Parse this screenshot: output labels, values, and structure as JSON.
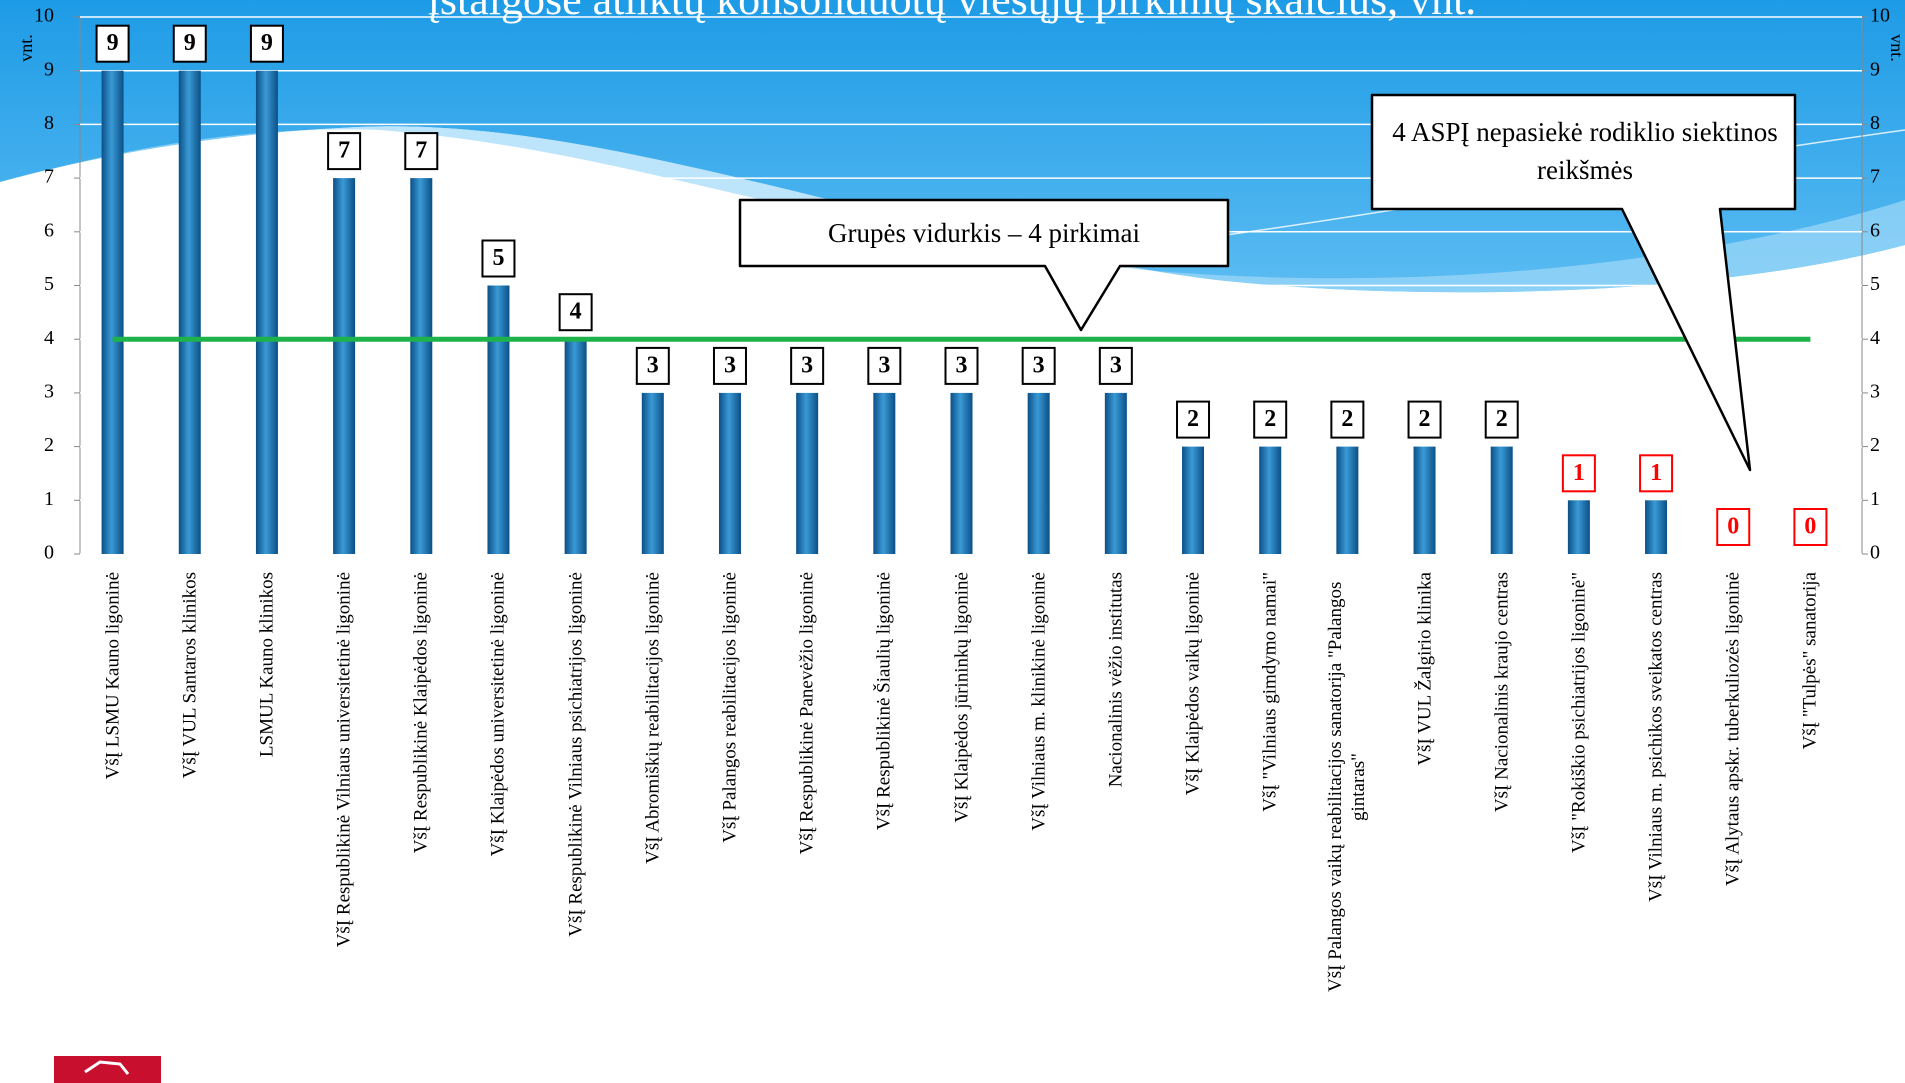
{
  "chart_data": {
    "type": "bar",
    "title": "įstaigose atliktų konsoliduotų viešųjų pirkimų skaičius, vnt.",
    "y_label": "vnt.",
    "y2_label": "vnt.",
    "categories": [
      "VšĮ LSMU Kauno ligoninė",
      "VšĮ VUL Santaros klinikos",
      "LSMUL Kauno klinikos",
      "VšĮ Respublikinė Vilniaus universitetinė ligoninė",
      "VšĮ Respublikinė Klaipėdos ligoninė",
      "VšĮ Klaipėdos universitetinė ligoninė",
      "VšĮ Respublikinė Vilniaus psichiatrijos ligoninė",
      "VšĮ Abromiškių reabilitacijos ligoninė",
      "VšĮ Palangos reabilitacijos ligoninė",
      "VšĮ Respublikinė Panevėžio ligoninė",
      "VšĮ Respublikinė Šiaulių ligoninė",
      "VšĮ Klaipėdos jūrininkų ligoninė",
      "VšĮ Vilniaus m. klinikinė ligoninė",
      "Nacionalinis vėžio institutas",
      "VšĮ Klaipėdos vaikų ligoninė",
      "VšĮ \"Vilniaus gimdymo namai\"",
      "VšĮ Palangos vaikų reabilitacijos sanatorija \"Palangos gintaras\"",
      "VšĮ VUL Žalgirio klinika",
      "VšĮ Nacionalinis kraujo centras",
      "VšĮ \"Rokiškio psichiatrijos ligoninė\"",
      "VšĮ Vilniaus m. psichikos sveikatos centras",
      "VšĮ Alytaus apskr. tuberkuliozės ligoninė",
      "VšĮ \"Tulpės\" sanatorija"
    ],
    "values": [
      9,
      9,
      9,
      7,
      7,
      5,
      4,
      3,
      3,
      3,
      3,
      3,
      3,
      3,
      2,
      2,
      2,
      2,
      2,
      1,
      1,
      0,
      0
    ],
    "color": "#1f78b4",
    "value_label_colors": [
      "#000000",
      "#000000",
      "#000000",
      "#000000",
      "#000000",
      "#000000",
      "#000000",
      "#000000",
      "#000000",
      "#000000",
      "#000000",
      "#000000",
      "#000000",
      "#000000",
      "#000000",
      "#000000",
      "#000000",
      "#000000",
      "#000000",
      "#ff0000",
      "#ff0000",
      "#ff0000",
      "#ff0000"
    ],
    "ylim": [
      0,
      10
    ],
    "yticks": [
      0,
      1,
      2,
      3,
      4,
      5,
      6,
      7,
      8,
      9,
      10
    ],
    "y2lim": [
      0,
      10
    ],
    "y2ticks": [
      0,
      1,
      2,
      3,
      4,
      5,
      6,
      7,
      8,
      9,
      10
    ],
    "grid": true,
    "average_line": {
      "value": 4,
      "color": "#1db34a"
    },
    "annotations": [
      "Grupės vidurkis – 4 pirkimai",
      "4 ASPĮ nepasiekė rodiklio siektinos reikšmės"
    ]
  }
}
